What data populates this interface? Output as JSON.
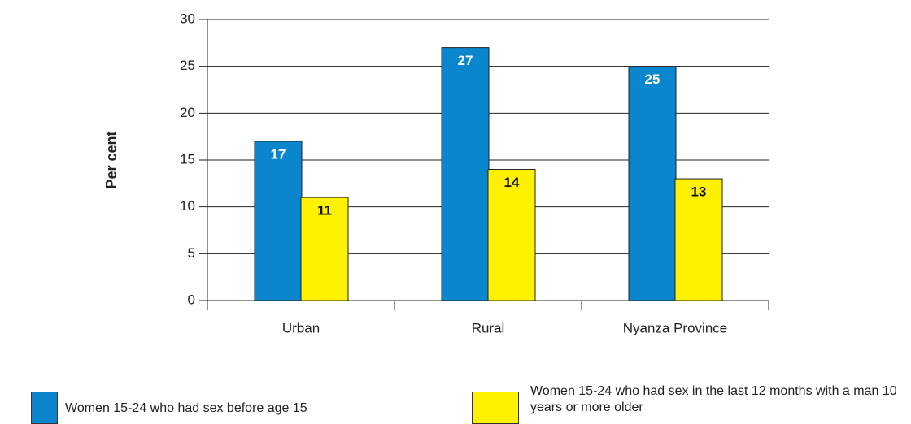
{
  "chart_data": {
    "type": "bar",
    "y_label": "Per cent",
    "categories": [
      "Urban",
      "Rural",
      "Nyanza Province"
    ],
    "series": [
      {
        "name": "Women 15-24 who had sex before age 15",
        "color": "#0a86cf",
        "values": [
          17,
          27,
          25
        ]
      },
      {
        "name": "Women 15-24 who had sex in the last 12 months with a man 10 years or more older",
        "color": "#fff200",
        "values": [
          11,
          14,
          13
        ]
      }
    ],
    "ylim": [
      0,
      30
    ],
    "yticks": [
      0,
      5,
      10,
      15,
      20,
      25,
      30
    ],
    "grid": true
  }
}
